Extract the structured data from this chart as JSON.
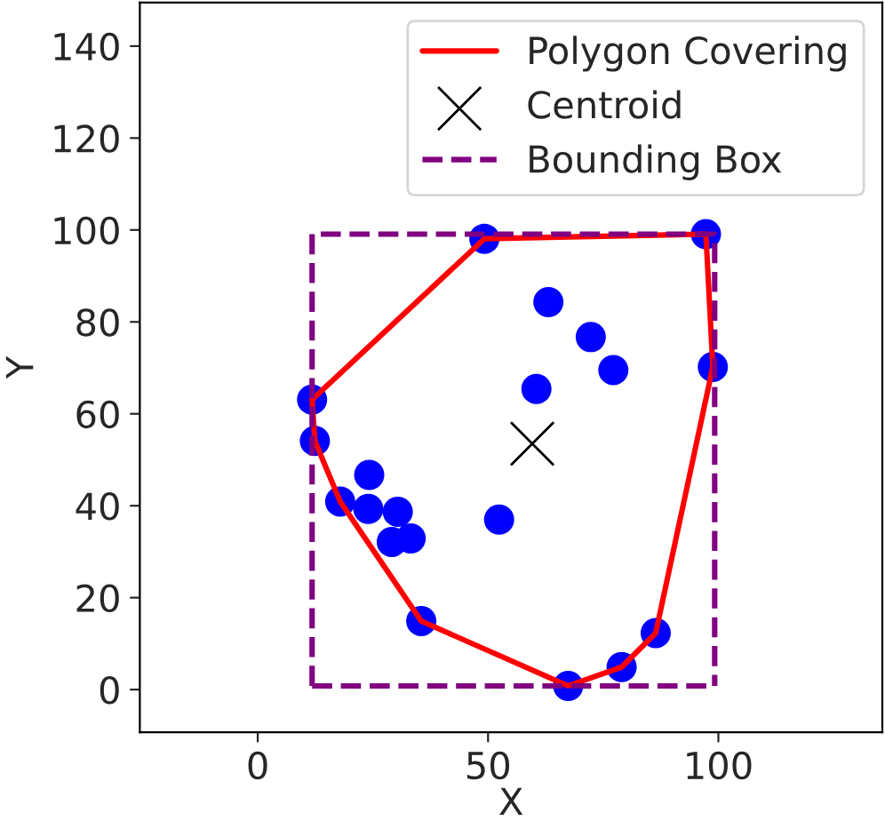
{
  "chart_data": {
    "type": "scatter",
    "xlabel": "X",
    "ylabel": "Y",
    "xlim": [
      -25.6,
      135.6
    ],
    "ylim": [
      -9.3,
      149.5
    ],
    "xticks": [
      0,
      50,
      100
    ],
    "yticks": [
      0,
      20,
      40,
      60,
      80,
      100,
      120,
      140
    ],
    "grid": false,
    "legend": "top right",
    "series": [
      {
        "color": "#0000ff",
        "marker": "circle",
        "x": [
          49.2,
          97.3,
          98.8,
          11.8,
          12.4,
          17.9,
          24.2,
          24.0,
          30.4,
          29.1,
          33.2,
          52.4,
          60.5,
          63.1,
          72.3,
          77.2,
          35.5,
          67.4,
          79.0,
          86.4
        ],
        "values": [
          98.1,
          99.1,
          70.2,
          63.1,
          54.1,
          40.9,
          46.7,
          39.3,
          38.7,
          32.1,
          32.9,
          37.0,
          65.4,
          84.3,
          76.7,
          69.5,
          14.9,
          0.8,
          4.9,
          12.3
        ]
      },
      {
        "type": "line",
        "name": "Polygon Covering",
        "color": "#ff0000",
        "line_style": "solid",
        "marker": "none",
        "x": [
          11.8,
          49.2,
          97.3,
          98.8
        ],
        "values": [
          63.1,
          98.1,
          99.1,
          70.2
        ]
      },
      {
        "type": "line",
        "color": "#ff0000",
        "line_style": "solid",
        "marker": "none",
        "x": [
          11.8,
          12.4,
          17.9,
          35.5,
          67.4,
          79.0,
          86.4,
          98.8
        ],
        "values": [
          63.1,
          54.1,
          40.9,
          14.9,
          0.8,
          4.9,
          12.3,
          70.2
        ]
      },
      {
        "name": "Centroid",
        "color": "#000000",
        "marker": "cross",
        "x": [
          59.6
        ],
        "values": [
          53.5
        ]
      },
      {
        "type": "line",
        "name": "Bounding Box",
        "color": "#800080",
        "line_style": "dashed",
        "marker": "none",
        "x": [
          11.8,
          11.8,
          99.2,
          99.2
        ],
        "values": [
          0.8,
          99.1,
          99.1,
          0.8
        ]
      },
      {
        "type": "line",
        "color": "#800080",
        "line_style": "dashed",
        "marker": "none",
        "x": [
          11.8,
          99.2
        ],
        "values": [
          0.8,
          0.8
        ]
      }
    ]
  }
}
